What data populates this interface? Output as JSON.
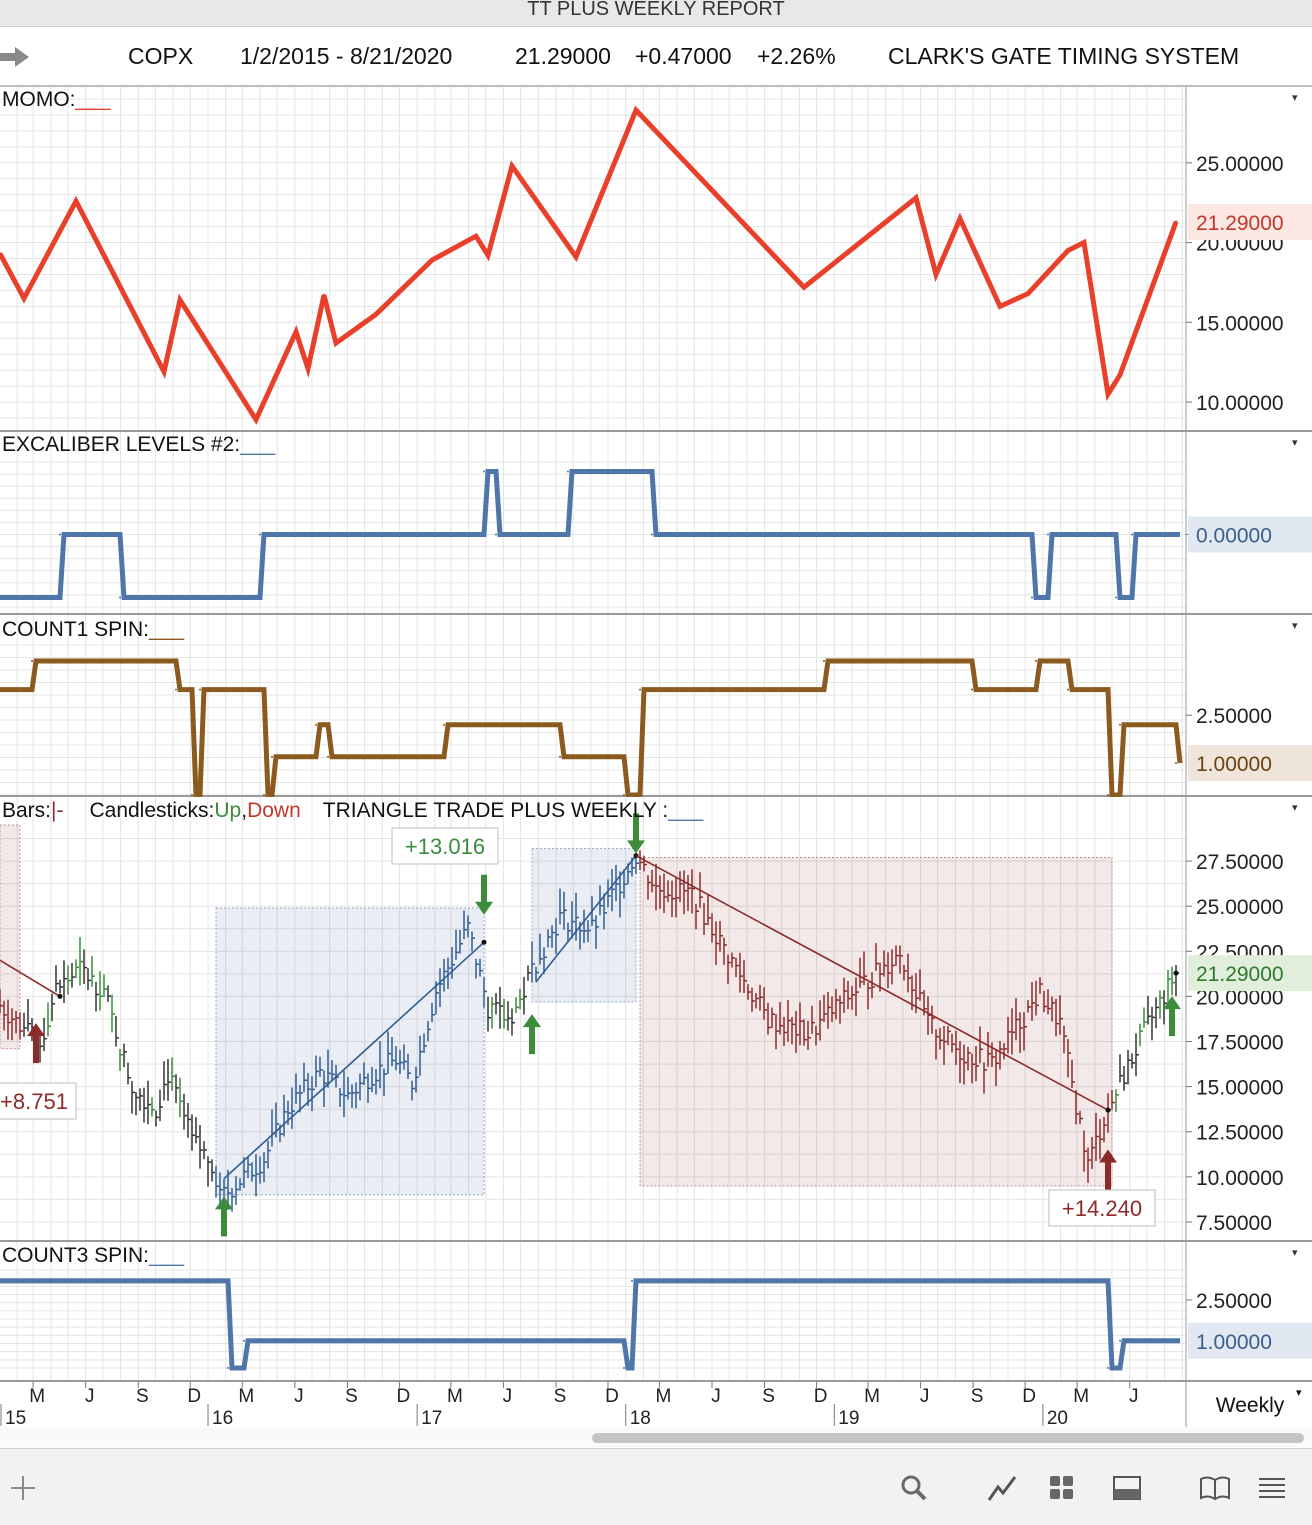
{
  "window": {
    "title": "TT PLUS WEEKLY REPORT"
  },
  "header": {
    "symbol": "COPX",
    "date_range": "1/2/2015 - 8/21/2020",
    "last": "21.29000",
    "change": "+0.47000",
    "change_pct": "+2.26%",
    "system": "CLARK'S GATE TIMING SYSTEM"
  },
  "colors": {
    "momo": "#e8402a",
    "excaliber": "#4e76a8",
    "count1": "#8b5a1e",
    "count3": "#4e76a8",
    "up": "#3c8c3c",
    "down": "#8c2a2a",
    "bar_blue": "#2f5d94",
    "grid": "#e4e4e4"
  },
  "panes": {
    "momo": {
      "label": "MOMO:",
      "last_label": "21.29000"
    },
    "excaliber": {
      "label": "EXCALIBER LEVELS #2:",
      "last_label": "0.00000"
    },
    "count1": {
      "label": "COUNT1 SPIN:",
      "last_label": "1.00000"
    },
    "price": {
      "legend_bars": "Bars:",
      "legend_bars_sym": "|-",
      "legend_candles": "Candlesticks:",
      "legend_up": "Up",
      "legend_comma": ",",
      "legend_down": "Down",
      "legend_study": "TRIANGLE TRADE PLUS WEEKLY :",
      "last_label": "21.29000",
      "trade_labels": [
        "+8.751",
        "+13.016",
        "+14.240"
      ]
    },
    "count3": {
      "label": "COUNT3 SPIN:",
      "last_label": "1.00000"
    }
  },
  "xaxis": {
    "month_labels": [
      "M",
      "J",
      "S",
      "D",
      "M",
      "J",
      "S",
      "D",
      "M",
      "J",
      "S",
      "D",
      "M",
      "J",
      "S",
      "D",
      "M",
      "J",
      "S",
      "D",
      "M",
      "J"
    ],
    "year_labels": [
      "15",
      "16",
      "17",
      "18",
      "19",
      "20"
    ],
    "period": "Weekly"
  },
  "toolbar": {
    "icons": [
      "plus-icon",
      "search-icon",
      "draw-line-icon",
      "grid-icon",
      "panel-icon",
      "book-icon",
      "menu-icon"
    ]
  },
  "chart_data": [
    {
      "name": "MOMO",
      "type": "line",
      "x_range": [
        "2015-01-02",
        "2020-08-21"
      ],
      "ylim": [
        8.5,
        29.0
      ],
      "yticks": [
        "10.00000",
        "15.00000",
        "20.00000",
        "25.00000"
      ],
      "last_value": 21.29,
      "points": [
        [
          "2015-01-02",
          19.3
        ],
        [
          "2015-02-13",
          16.5
        ],
        [
          "2015-05-15",
          22.6
        ],
        [
          "2015-10-16",
          11.9
        ],
        [
          "2015-11-13",
          16.4
        ],
        [
          "2016-03-25",
          8.9
        ],
        [
          "2016-06-03",
          14.4
        ],
        [
          "2016-06-24",
          12.1
        ],
        [
          "2016-07-22",
          16.7
        ],
        [
          "2016-08-12",
          13.7
        ],
        [
          "2016-10-21",
          15.5
        ],
        [
          "2017-01-27",
          18.9
        ],
        [
          "2017-04-14",
          20.4
        ],
        [
          "2017-05-05",
          19.2
        ],
        [
          "2017-06-16",
          24.8
        ],
        [
          "2017-10-06",
          19.1
        ],
        [
          "2018-01-19",
          28.3
        ],
        [
          "2018-11-09",
          17.2
        ],
        [
          "2019-05-24",
          22.8
        ],
        [
          "2019-06-28",
          18.0
        ],
        [
          "2019-08-09",
          21.5
        ],
        [
          "2019-10-18",
          16.0
        ],
        [
          "2019-12-06",
          16.8
        ],
        [
          "2020-02-14",
          19.5
        ],
        [
          "2020-03-13",
          20.0
        ],
        [
          "2020-04-24",
          10.5
        ],
        [
          "2020-05-15",
          11.7
        ],
        [
          "2020-08-21",
          21.29
        ]
      ]
    },
    {
      "name": "EXCALIBER LEVELS #2",
      "type": "line",
      "step": true,
      "x_range": [
        "2015-01-02",
        "2020-08-21"
      ],
      "ylim": [
        -2.3,
        2.3
      ],
      "yticks": [
        "0.00000"
      ],
      "last_value": 0.0,
      "levels": [
        [
          "2015-01-02",
          -2.0
        ],
        [
          "2015-04-17",
          0.0
        ],
        [
          "2015-07-31",
          -2.0
        ],
        [
          "2016-04-01",
          0.0
        ],
        [
          "2017-04-28",
          2.0
        ],
        [
          "2017-05-19",
          0.0
        ],
        [
          "2017-09-22",
          2.0
        ],
        [
          "2018-02-16",
          0.0
        ],
        [
          "2019-12-13",
          -2.0
        ],
        [
          "2020-01-10",
          0.0
        ],
        [
          "2020-05-08",
          -2.0
        ],
        [
          "2020-06-05",
          0.0
        ],
        [
          "2020-08-21",
          0.0
        ]
      ]
    },
    {
      "name": "COUNT1 SPIN",
      "type": "line",
      "step": true,
      "x_range": [
        "2015-01-02",
        "2020-08-21"
      ],
      "ylim": [
        0.0,
        4.7
      ],
      "yticks": [
        "2.50000"
      ],
      "last_value": 1.0,
      "levels": [
        [
          "2015-01-02",
          3.3
        ],
        [
          "2015-02-27",
          4.2
        ],
        [
          "2015-11-06",
          3.3
        ],
        [
          "2015-12-04",
          0.0
        ],
        [
          "2015-12-18",
          3.3
        ],
        [
          "2016-04-08",
          0.0
        ],
        [
          "2016-04-22",
          1.2
        ],
        [
          "2016-07-08",
          2.2
        ],
        [
          "2016-07-29",
          1.2
        ],
        [
          "2017-02-17",
          2.2
        ],
        [
          "2017-09-08",
          1.2
        ],
        [
          "2017-12-29",
          0.0
        ],
        [
          "2018-01-26",
          3.3
        ],
        [
          "2018-12-14",
          4.2
        ],
        [
          "2019-08-30",
          3.3
        ],
        [
          "2019-12-20",
          4.2
        ],
        [
          "2020-02-14",
          3.3
        ],
        [
          "2020-04-24",
          0.0
        ],
        [
          "2020-05-15",
          2.2
        ],
        [
          "2020-08-07",
          2.2
        ],
        [
          "2020-08-21",
          1.0
        ]
      ]
    },
    {
      "name": "Price (COPX weekly bars)",
      "type": "line",
      "x_range": [
        "2015-01-02",
        "2020-08-21"
      ],
      "ylim": [
        6.5,
        29.5
      ],
      "yticks": [
        "7.50000",
        "10.00000",
        "12.50000",
        "15.00000",
        "17.50000",
        "20.00000",
        "22.50000",
        "25.00000",
        "27.50000"
      ],
      "last_value": 21.29,
      "close": [
        [
          "2015-01-02",
          19.5
        ],
        [
          "2015-03-13",
          17.3
        ],
        [
          "2015-04-10",
          20.4
        ],
        [
          "2015-05-22",
          21.5
        ],
        [
          "2015-07-03",
          20.3
        ],
        [
          "2015-08-21",
          15.0
        ],
        [
          "2015-10-02",
          13.8
        ],
        [
          "2015-10-23",
          15.7
        ],
        [
          "2015-12-04",
          12.0
        ],
        [
          "2016-01-08",
          10.8
        ],
        [
          "2016-01-22",
          8.8
        ],
        [
          "2016-04-08",
          11.0
        ],
        [
          "2016-05-20",
          13.8
        ],
        [
          "2016-07-15",
          15.8
        ],
        [
          "2016-09-02",
          14.5
        ],
        [
          "2016-10-14",
          15.7
        ],
        [
          "2016-11-25",
          16.5
        ],
        [
          "2016-12-23",
          15.2
        ],
        [
          "2017-02-03",
          20.3
        ],
        [
          "2017-03-31",
          23.8
        ],
        [
          "2017-05-05",
          19.4
        ],
        [
          "2017-06-09",
          18.7
        ],
        [
          "2017-06-30",
          19.7
        ],
        [
          "2017-07-21",
          21.5
        ],
        [
          "2017-09-08",
          24.4
        ],
        [
          "2017-11-03",
          23.7
        ],
        [
          "2018-01-19",
          27.8
        ],
        [
          "2018-02-23",
          26.0
        ],
        [
          "2018-04-27",
          25.7
        ],
        [
          "2018-06-15",
          23.0
        ],
        [
          "2018-09-07",
          18.7
        ],
        [
          "2018-11-16",
          17.9
        ],
        [
          "2019-01-11",
          19.6
        ],
        [
          "2019-04-26",
          22.4
        ],
        [
          "2019-06-14",
          18.5
        ],
        [
          "2019-08-09",
          16.9
        ],
        [
          "2019-10-04",
          16.3
        ],
        [
          "2019-12-27",
          20.2
        ],
        [
          "2020-01-31",
          18.5
        ],
        [
          "2020-03-20",
          10.7
        ],
        [
          "2020-04-17",
          13.2
        ],
        [
          "2020-06-26",
          18.0
        ],
        [
          "2020-08-21",
          21.29
        ]
      ],
      "trend_lines": [
        {
          "from": [
            "2015-01-02",
            22.0
          ],
          "to": [
            "2015-04-17",
            20.0
          ],
          "color": "down"
        },
        {
          "from": [
            "2016-01-29",
            9.9
          ],
          "to": [
            "2017-04-28",
            23.0
          ],
          "color": "bar_blue"
        },
        {
          "from": [
            "2017-07-28",
            20.8
          ],
          "to": [
            "2018-01-19",
            27.8
          ],
          "color": "bar_blue"
        },
        {
          "from": [
            "2018-01-19",
            27.8
          ],
          "to": [
            "2020-04-24",
            13.7
          ],
          "color": "down"
        }
      ],
      "trade_boxes": [
        {
          "from": "2014-12-01",
          "to": "2015-02-06",
          "low": 17.1,
          "high": 29.5,
          "color": "down"
        },
        {
          "from": "2016-01-15",
          "to": "2017-04-28",
          "low": 9.0,
          "high": 24.9,
          "color": "bar_blue"
        },
        {
          "from": "2017-07-21",
          "to": "2018-01-19",
          "low": 19.7,
          "high": 28.2,
          "color": "bar_blue"
        },
        {
          "from": "2018-01-26",
          "to": "2020-05-01",
          "low": 9.5,
          "high": 27.7,
          "color": "down"
        }
      ],
      "signals": [
        {
          "date": "2015-03-06",
          "price": 16.3,
          "dir": "up",
          "color": "down"
        },
        {
          "date": "2016-01-29",
          "price": 6.7,
          "dir": "up",
          "color": "up"
        },
        {
          "date": "2017-04-28",
          "price": 25.3,
          "dir": "down",
          "color": "up"
        },
        {
          "date": "2017-07-21",
          "price": 16.8,
          "dir": "up",
          "color": "up"
        },
        {
          "date": "2018-01-19",
          "price": 28.7,
          "dir": "down",
          "color": "up"
        },
        {
          "date": "2020-04-24",
          "price": 9.3,
          "dir": "up",
          "color": "down"
        },
        {
          "date": "2020-08-14",
          "price": 17.8,
          "dir": "up",
          "color": "up"
        }
      ],
      "trade_results": [
        "+8.751",
        "+13.016",
        "+14.240"
      ]
    },
    {
      "name": "COUNT3 SPIN",
      "type": "line",
      "step": true,
      "x_range": [
        "2015-01-02",
        "2020-08-21"
      ],
      "ylim": [
        0.0,
        3.6
      ],
      "yticks": [
        "2.50000"
      ],
      "last_value": 1.0,
      "levels": [
        [
          "2015-01-02",
          3.2
        ],
        [
          "2016-02-05",
          0.0
        ],
        [
          "2016-03-04",
          1.0
        ],
        [
          "2017-12-29",
          0.0
        ],
        [
          "2018-01-12",
          3.2
        ],
        [
          "2020-04-24",
          0.0
        ],
        [
          "2020-05-15",
          1.0
        ],
        [
          "2020-08-21",
          1.0
        ]
      ]
    }
  ]
}
